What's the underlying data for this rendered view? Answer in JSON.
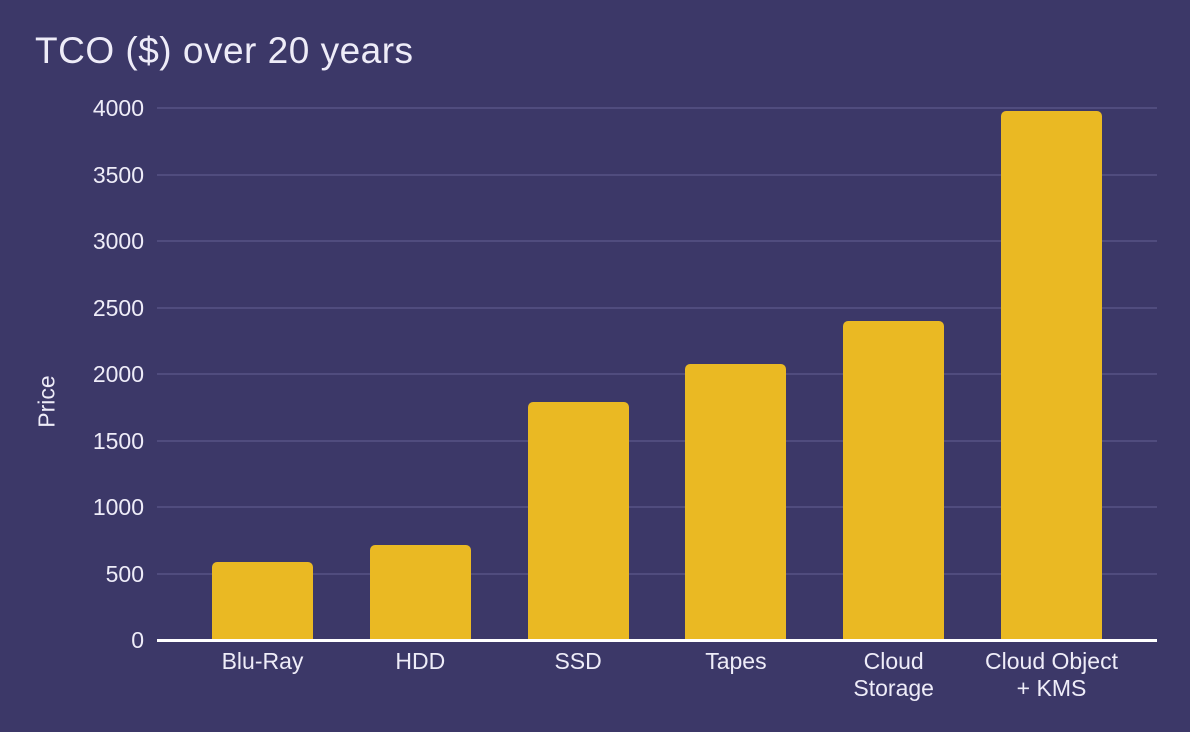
{
  "title": "TCO ($) over 20 years",
  "chart_data": {
    "type": "bar",
    "title": "TCO ($) over 20 years",
    "xlabel": "",
    "ylabel": "Price",
    "categories": [
      "Blu-Ray",
      "HDD",
      "SSD",
      "Tapes",
      "Cloud Storage",
      "Cloud Object + KMS"
    ],
    "category_lines": [
      [
        "Blu-Ray"
      ],
      [
        "HDD"
      ],
      [
        "SSD"
      ],
      [
        "Tapes"
      ],
      [
        "Cloud",
        "Storage"
      ],
      [
        "Cloud Object",
        "+ KMS"
      ]
    ],
    "values": [
      590,
      715,
      1790,
      2075,
      2400,
      3980
    ],
    "ylim": [
      0,
      4000
    ],
    "yticks": [
      0,
      500,
      1000,
      1500,
      2000,
      2500,
      3000,
      3500,
      4000
    ],
    "grid": true,
    "legend": false,
    "colors": {
      "background": "#3c3868",
      "bar": "#eab923",
      "gridline": "#504c7e",
      "axis_line": "#ffffff",
      "text": "#eeecf8"
    }
  }
}
